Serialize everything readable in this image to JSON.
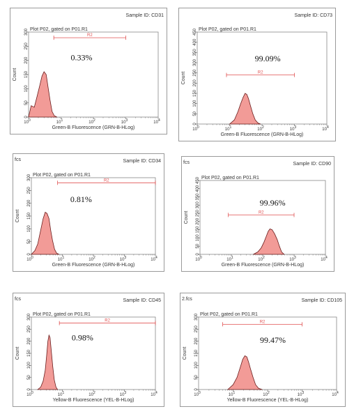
{
  "chart_data": [
    {
      "type": "area",
      "corner_label": "",
      "sample_id": "Sample ID: CD31",
      "plot_title": "Plot P02, gated on P01.R1",
      "xlabel": "Green-B Fluorescence (GRN-B-HLog)",
      "ylabel": "Count",
      "x_scale": "log",
      "xlim": [
        1,
        10000
      ],
      "ylim": [
        0,
        300
      ],
      "x_ticks": [
        {
          "v": 1,
          "e": "0"
        },
        {
          "v": 10,
          "e": "1"
        },
        {
          "v": 100,
          "e": "2"
        },
        {
          "v": 1000,
          "e": "3"
        },
        {
          "v": 10000,
          "e": "4"
        }
      ],
      "y_ticks": [
        0,
        50,
        100,
        150,
        200,
        250,
        300
      ],
      "gate": {
        "label": "R2",
        "from": 6,
        "to": 1000,
        "y": 280
      },
      "percent": "0.33%",
      "percent_pos": {
        "x": 20,
        "y": 210
      },
      "series": [
        {
          "x": [
            1,
            1.2,
            1.5,
            1.8,
            2.2,
            2.6,
            3.0,
            3.5,
            4.0,
            4.6,
            5.3,
            6.2,
            7.5
          ],
          "y": [
            0,
            40,
            35,
            70,
            110,
            145,
            160,
            150,
            105,
            60,
            20,
            5,
            0
          ]
        }
      ]
    },
    {
      "type": "area",
      "corner_label": "",
      "sample_id": "Sample ID: CD73",
      "plot_title": "Plot P02, gated on P01.R1",
      "xlabel": "Green-B Fluorescence (GRN-B-HLog)",
      "ylabel": "Count",
      "x_scale": "log",
      "xlim": [
        1,
        10000
      ],
      "ylim": [
        0,
        450
      ],
      "x_ticks": [
        {
          "v": 1,
          "e": "0"
        },
        {
          "v": 10,
          "e": "1"
        },
        {
          "v": 100,
          "e": "2"
        },
        {
          "v": 1000,
          "e": "3"
        },
        {
          "v": 10000,
          "e": "4"
        }
      ],
      "y_ticks": [
        0,
        50,
        100,
        150,
        200,
        250,
        300,
        350,
        400,
        450
      ],
      "gate": {
        "label": "R2",
        "from": 8,
        "to": 1000,
        "y": 240
      },
      "percent": "99.09%",
      "percent_pos": {
        "x": 60,
        "y": 320
      },
      "series": [
        {
          "x": [
            10,
            14,
            18,
            22,
            26,
            30,
            34,
            38,
            44,
            52,
            62,
            75,
            90
          ],
          "y": [
            0,
            20,
            60,
            100,
            130,
            150,
            145,
            125,
            90,
            50,
            20,
            5,
            0
          ]
        }
      ]
    },
    {
      "type": "area",
      "corner_label": "fcs",
      "sample_id": "Sample ID: CD34",
      "plot_title": "Plot P02, gated on P01.R1",
      "xlabel": "Green-B Fluorescence (GRN-B-HLog)",
      "ylabel": "Count",
      "x_scale": "log",
      "xlim": [
        1,
        10000
      ],
      "ylim": [
        0,
        300
      ],
      "x_ticks": [
        {
          "v": 1,
          "e": "0"
        },
        {
          "v": 10,
          "e": "1"
        },
        {
          "v": 100,
          "e": "2"
        },
        {
          "v": 1000,
          "e": "3"
        },
        {
          "v": 10000,
          "e": "4"
        }
      ],
      "y_ticks": [
        0,
        50,
        100,
        150,
        200,
        250,
        300
      ],
      "gate": {
        "label": "R2",
        "from": 7,
        "to": 10000,
        "y": 280
      },
      "percent": "0.81%",
      "percent_pos": {
        "x": 18,
        "y": 215
      },
      "series": [
        {
          "x": [
            1,
            1.3,
            1.6,
            2.0,
            2.4,
            2.8,
            3.2,
            3.7,
            4.2,
            4.8,
            5.6,
            6.5,
            7.8
          ],
          "y": [
            0,
            15,
            40,
            95,
            140,
            165,
            160,
            140,
            95,
            55,
            20,
            5,
            0
          ]
        }
      ]
    },
    {
      "type": "area",
      "corner_label": "fcs",
      "sample_id": "Sample ID:  CD90",
      "plot_title": "Plot P02, gated on P01.R1",
      "xlabel": "Green-B Fluorescence (GRN-B-HLog)",
      "ylabel": "Count",
      "x_scale": "log",
      "xlim": [
        1,
        10000
      ],
      "ylim": [
        0,
        450
      ],
      "x_ticks": [
        {
          "v": 1,
          "e": "0"
        },
        {
          "v": 10,
          "e": "1"
        },
        {
          "v": 100,
          "e": "2"
        },
        {
          "v": 1000,
          "e": "3"
        },
        {
          "v": 10000,
          "e": "4"
        }
      ],
      "y_ticks": [
        0,
        50,
        100,
        150,
        200,
        250,
        300,
        350,
        400,
        450
      ],
      "gate": {
        "label": "R2",
        "from": 8,
        "to": 1000,
        "y": 240
      },
      "percent": "99.96%",
      "percent_pos": {
        "x": 80,
        "y": 315
      },
      "series": [
        {
          "x": [
            50,
            70,
            90,
            110,
            130,
            150,
            170,
            200,
            240,
            290,
            340,
            400,
            480
          ],
          "y": [
            0,
            15,
            40,
            75,
            110,
            140,
            155,
            150,
            125,
            90,
            50,
            15,
            0
          ]
        }
      ]
    },
    {
      "type": "area",
      "corner_label": "fcs",
      "sample_id": "Sample ID: CD45",
      "plot_title": "Plot P02, gated on P01.R1",
      "xlabel": "Yellow-B Fluorescence (YEL-B-HLog)",
      "ylabel": "Count",
      "x_scale": "log",
      "xlim": [
        1,
        10000
      ],
      "ylim": [
        0,
        300
      ],
      "x_ticks": [
        {
          "v": 1,
          "e": "0"
        },
        {
          "v": 10,
          "e": "1"
        },
        {
          "v": 100,
          "e": "2"
        },
        {
          "v": 1000,
          "e": "3"
        },
        {
          "v": 10000,
          "e": "4"
        }
      ],
      "y_ticks": [
        0,
        50,
        100,
        150,
        200,
        250,
        300
      ],
      "gate": {
        "label": "R2",
        "from": 8,
        "to": 10000,
        "y": 275
      },
      "percent": "0.98%",
      "percent_pos": {
        "x": 20,
        "y": 215
      },
      "series": [
        {
          "x": [
            1.6,
            2.0,
            2.4,
            2.8,
            3.1,
            3.4,
            3.7,
            4.0,
            4.4,
            4.9,
            5.5,
            6.2,
            7.0
          ],
          "y": [
            0,
            10,
            35,
            80,
            140,
            200,
            225,
            215,
            160,
            95,
            40,
            10,
            0
          ]
        }
      ]
    },
    {
      "type": "area",
      "corner_label": "2.fcs",
      "sample_id": "Sample ID: CD105",
      "plot_title": "Plot P02, gated on P01.R1",
      "xlabel": "Yellow-B Fluorescence (YEL-B-HLog)",
      "ylabel": "Count",
      "x_scale": "log",
      "xlim": [
        1,
        10000
      ],
      "ylim": [
        0,
        300
      ],
      "x_ticks": [
        {
          "v": 1,
          "e": "0"
        },
        {
          "v": 10,
          "e": "1"
        },
        {
          "v": 100,
          "e": "2"
        },
        {
          "v": 1000,
          "e": "3"
        },
        {
          "v": 10000,
          "e": "4"
        }
      ],
      "y_ticks": [
        0,
        50,
        100,
        150,
        200,
        250,
        300
      ],
      "gate": {
        "label": "R2",
        "from": 5,
        "to": 1000,
        "y": 270
      },
      "percent": "99.47%",
      "percent_pos": {
        "x": 60,
        "y": 205
      },
      "series": [
        {
          "x": [
            7,
            10,
            13,
            16,
            19,
            22,
            25,
            28,
            32,
            38,
            45,
            55,
            70
          ],
          "y": [
            0,
            20,
            50,
            90,
            125,
            140,
            135,
            115,
            85,
            50,
            20,
            5,
            0
          ]
        }
      ]
    }
  ],
  "colors": {
    "fill": "#f29b97",
    "stroke": "#6a1d1d",
    "gate": "#e05050",
    "axis": "#555555"
  }
}
